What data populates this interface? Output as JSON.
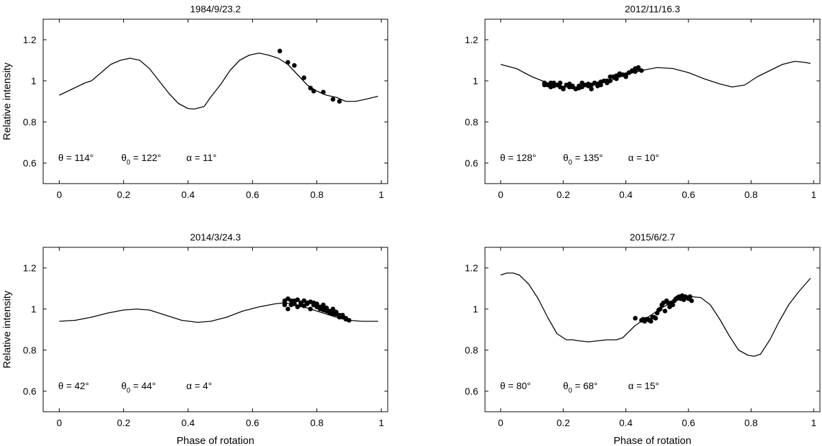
{
  "chart_data": [
    {
      "type": "line",
      "title": "1984/9/23.2",
      "xlabel": "",
      "ylabel": "Relative intensity",
      "xlim": [
        -0.05,
        1.02
      ],
      "ylim": [
        0.5,
        1.3
      ],
      "xticks": [
        "0",
        "0.2",
        "0.4",
        "0.6",
        "0.8",
        "1"
      ],
      "yticks": [
        "0.6",
        "0.8",
        "1",
        "1.2"
      ],
      "annotation": {
        "theta": "θ = 114°",
        "theta0_sym": "θ",
        "theta0_sub": "0",
        "theta0_val": " = 122°",
        "alpha": "α = 11°"
      },
      "model": {
        "x": [
          0,
          0.04,
          0.08,
          0.1,
          0.13,
          0.16,
          0.19,
          0.22,
          0.25,
          0.28,
          0.31,
          0.34,
          0.37,
          0.4,
          0.42,
          0.45,
          0.47,
          0.5,
          0.53,
          0.56,
          0.59,
          0.62,
          0.65,
          0.68,
          0.71,
          0.74,
          0.77,
          0.8,
          0.83,
          0.86,
          0.89,
          0.92,
          0.95,
          0.99
        ],
        "y": [
          0.93,
          0.96,
          0.99,
          1.0,
          1.04,
          1.08,
          1.1,
          1.11,
          1.1,
          1.06,
          1.0,
          0.94,
          0.89,
          0.865,
          0.863,
          0.875,
          0.92,
          0.98,
          1.05,
          1.1,
          1.125,
          1.135,
          1.125,
          1.11,
          1.08,
          1.03,
          0.98,
          0.95,
          0.93,
          0.92,
          0.9,
          0.9,
          0.91,
          0.925
        ]
      },
      "observations": {
        "x": [
          0.685,
          0.71,
          0.73,
          0.76,
          0.78,
          0.79,
          0.82,
          0.85,
          0.87
        ],
        "y": [
          1.145,
          1.09,
          1.075,
          1.015,
          0.965,
          0.95,
          0.945,
          0.91,
          0.9
        ]
      }
    },
    {
      "type": "line",
      "title": "2012/11/16.3",
      "xlabel": "",
      "ylabel": "",
      "xlim": [
        -0.05,
        1.02
      ],
      "ylim": [
        0.5,
        1.3
      ],
      "xticks": [
        "0",
        "0.2",
        "0.4",
        "0.6",
        "0.8",
        "1"
      ],
      "yticks": [
        "0.6",
        "0.8",
        "1",
        "1.2"
      ],
      "annotation": {
        "theta": "θ = 128°",
        "theta0_sym": "θ",
        "theta0_sub": "0",
        "theta0_val": " = 135°",
        "alpha": "α = 10°"
      },
      "model": {
        "x": [
          0,
          0.05,
          0.1,
          0.15,
          0.2,
          0.25,
          0.3,
          0.35,
          0.4,
          0.45,
          0.5,
          0.55,
          0.6,
          0.65,
          0.7,
          0.74,
          0.78,
          0.82,
          0.86,
          0.9,
          0.94,
          0.97,
          0.99
        ],
        "y": [
          1.08,
          1.06,
          1.02,
          0.99,
          0.97,
          0.97,
          0.98,
          1.0,
          1.03,
          1.05,
          1.065,
          1.06,
          1.04,
          1.01,
          0.985,
          0.97,
          0.98,
          1.02,
          1.05,
          1.08,
          1.095,
          1.09,
          1.085
        ]
      },
      "observations": {
        "x": [
          0.14,
          0.15,
          0.16,
          0.17,
          0.18,
          0.19,
          0.2,
          0.21,
          0.22,
          0.23,
          0.24,
          0.25,
          0.26,
          0.27,
          0.28,
          0.29,
          0.3,
          0.31,
          0.32,
          0.33,
          0.34,
          0.35,
          0.36,
          0.37,
          0.38,
          0.39,
          0.4,
          0.41,
          0.42,
          0.43,
          0.44,
          0.45,
          0.16,
          0.19,
          0.22,
          0.25,
          0.28,
          0.31,
          0.34,
          0.37,
          0.4,
          0.43,
          0.14,
          0.17,
          0.2,
          0.23,
          0.26,
          0.29,
          0.32,
          0.35,
          0.38,
          0.41,
          0.44
        ],
        "y": [
          0.99,
          0.98,
          0.99,
          0.975,
          0.98,
          0.97,
          0.965,
          0.98,
          0.97,
          0.975,
          0.96,
          0.975,
          0.97,
          0.98,
          0.985,
          0.98,
          0.99,
          0.985,
          0.995,
          1.0,
          0.99,
          1.02,
          1.02,
          1.025,
          1.03,
          1.03,
          1.03,
          1.04,
          1.05,
          1.06,
          1.06,
          1.05,
          0.97,
          0.99,
          0.985,
          0.965,
          0.975,
          0.975,
          1.0,
          1.01,
          1.02,
          1.045,
          0.98,
          0.99,
          0.96,
          0.97,
          0.99,
          0.96,
          0.98,
          1.0,
          1.035,
          1.04,
          1.065
        ]
      }
    },
    {
      "type": "line",
      "title": "2014/3/24.3",
      "xlabel": "Phase of rotation",
      "ylabel": "Relative intensity",
      "xlim": [
        -0.05,
        1.02
      ],
      "ylim": [
        0.5,
        1.3
      ],
      "xticks": [
        "0",
        "0.2",
        "0.4",
        "0.6",
        "0.8",
        "1"
      ],
      "yticks": [
        "0.6",
        "0.8",
        "1",
        "1.2"
      ],
      "annotation": {
        "theta": "θ = 42°",
        "theta0_sym": "θ",
        "theta0_sub": "0",
        "theta0_val": " = 44°",
        "alpha": "α = 4°"
      },
      "model": {
        "x": [
          0,
          0.05,
          0.1,
          0.15,
          0.2,
          0.24,
          0.28,
          0.33,
          0.38,
          0.43,
          0.47,
          0.52,
          0.57,
          0.62,
          0.67,
          0.7,
          0.74,
          0.78,
          0.82,
          0.86,
          0.9,
          0.94,
          0.99
        ],
        "y": [
          0.94,
          0.945,
          0.96,
          0.98,
          0.995,
          1.0,
          0.995,
          0.97,
          0.945,
          0.935,
          0.94,
          0.96,
          0.99,
          1.01,
          1.025,
          1.03,
          1.02,
          1.0,
          0.98,
          0.96,
          0.945,
          0.94,
          0.94
        ]
      },
      "observations": {
        "x": [
          0.7,
          0.71,
          0.72,
          0.73,
          0.74,
          0.75,
          0.76,
          0.77,
          0.78,
          0.79,
          0.8,
          0.81,
          0.82,
          0.83,
          0.84,
          0.85,
          0.86,
          0.87,
          0.88,
          0.89,
          0.9,
          0.7,
          0.72,
          0.74,
          0.76,
          0.78,
          0.8,
          0.82,
          0.84,
          0.86,
          0.88,
          0.71,
          0.73,
          0.75,
          0.77,
          0.79,
          0.81,
          0.83,
          0.85,
          0.87,
          0.89,
          0.7,
          0.73,
          0.76,
          0.79,
          0.82,
          0.85,
          0.88
        ],
        "y": [
          1.04,
          1.05,
          1.04,
          1.04,
          1.045,
          1.03,
          1.04,
          1.03,
          1.035,
          1.02,
          1.025,
          1.01,
          1.0,
          1.005,
          0.99,
          0.98,
          0.975,
          0.97,
          0.96,
          0.955,
          0.945,
          1.02,
          1.02,
          1.01,
          1.015,
          1.0,
          1.01,
          0.995,
          0.98,
          0.985,
          0.965,
          1.0,
          1.025,
          1.02,
          1.025,
          1.02,
          1.0,
          0.99,
          0.975,
          0.96,
          0.95,
          1.03,
          1.035,
          1.04,
          1.03,
          1.02,
          1.0,
          0.97
        ]
      }
    },
    {
      "type": "line",
      "title": "2015/6/2.7",
      "xlabel": "Phase of rotation",
      "ylabel": "",
      "xlim": [
        -0.05,
        1.02
      ],
      "ylim": [
        0.5,
        1.3
      ],
      "xticks": [
        "0",
        "0.2",
        "0.4",
        "0.6",
        "0.8",
        "1"
      ],
      "yticks": [
        "0.6",
        "0.8",
        "1",
        "1.2"
      ],
      "annotation": {
        "theta": "θ = 80°",
        "theta0_sym": "θ",
        "theta0_sub": "0",
        "theta0_val": " = 68°",
        "alpha": "α = 15°"
      },
      "model": {
        "x": [
          0,
          0.02,
          0.04,
          0.06,
          0.09,
          0.12,
          0.15,
          0.18,
          0.21,
          0.23,
          0.25,
          0.28,
          0.31,
          0.34,
          0.37,
          0.39,
          0.41,
          0.43,
          0.46,
          0.49,
          0.52,
          0.55,
          0.58,
          0.61,
          0.64,
          0.67,
          0.7,
          0.73,
          0.76,
          0.79,
          0.81,
          0.83,
          0.86,
          0.89,
          0.92,
          0.95,
          0.99
        ],
        "y": [
          1.165,
          1.175,
          1.175,
          1.165,
          1.12,
          1.05,
          0.96,
          0.88,
          0.85,
          0.85,
          0.845,
          0.84,
          0.845,
          0.85,
          0.85,
          0.86,
          0.89,
          0.92,
          0.95,
          0.98,
          1.01,
          1.035,
          1.05,
          1.06,
          1.055,
          1.02,
          0.95,
          0.87,
          0.8,
          0.775,
          0.77,
          0.78,
          0.85,
          0.94,
          1.02,
          1.08,
          1.15
        ]
      },
      "observations": {
        "x": [
          0.43,
          0.45,
          0.46,
          0.47,
          0.48,
          0.49,
          0.5,
          0.51,
          0.52,
          0.53,
          0.54,
          0.55,
          0.56,
          0.57,
          0.58,
          0.59,
          0.6,
          0.61,
          0.455,
          0.475,
          0.495,
          0.515,
          0.535,
          0.555,
          0.575,
          0.595,
          0.465,
          0.485,
          0.505,
          0.525,
          0.545,
          0.565,
          0.585,
          0.605
        ],
        "y": [
          0.955,
          0.945,
          0.94,
          0.95,
          0.94,
          0.96,
          0.98,
          1.0,
          1.03,
          1.04,
          1.01,
          1.02,
          1.05,
          1.06,
          1.065,
          1.06,
          1.05,
          1.04,
          0.95,
          0.945,
          0.955,
          1.02,
          1.03,
          1.04,
          1.05,
          1.055,
          0.95,
          0.96,
          0.995,
          0.99,
          1.03,
          1.055,
          1.045,
          1.06
        ]
      }
    }
  ]
}
